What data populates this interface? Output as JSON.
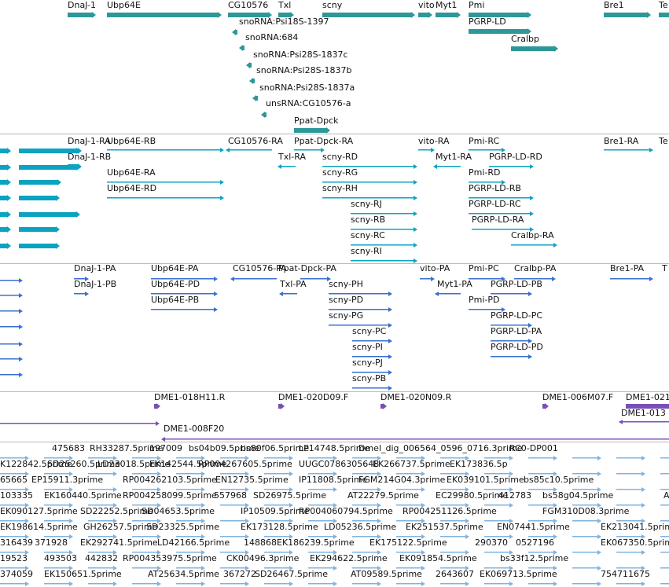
{
  "colors": {
    "gene": "#2e9898",
    "transcript": "#0ba3c0",
    "protein": "#3a6fd0",
    "clone": "#7850b5",
    "est": "#7fb3e0"
  },
  "tracks": {
    "genes": [
      {
        "label": "DnaJ-1"
      },
      {
        "label": "Ubp64E"
      },
      {
        "label": "CG10576"
      },
      {
        "label": "Txl"
      },
      {
        "label": "scny"
      },
      {
        "label": "vito"
      },
      {
        "label": "Myt1"
      },
      {
        "label": "Pmi"
      },
      {
        "label": "PGRP-LD"
      },
      {
        "label": "Cralbp"
      },
      {
        "label": "Bre1"
      },
      {
        "label": "Te"
      },
      {
        "label": "snoRNA:Psi18S-1397"
      },
      {
        "label": "snoRNA:684"
      },
      {
        "label": "snoRNA:Psi28S-1837c"
      },
      {
        "label": "snoRNA:Psi28S-1837b"
      },
      {
        "label": "snoRNA:Psi28S-1837a"
      },
      {
        "label": "unsRNA:CG10576-a"
      },
      {
        "label": "Ppat-Dpck"
      }
    ],
    "transcripts": [
      {
        "label": "DnaJ-1-RA"
      },
      {
        "label": "DnaJ-1-RB"
      },
      {
        "label": "Ubp64E-RB"
      },
      {
        "label": "Ubp64E-RA"
      },
      {
        "label": "Ubp64E-RD"
      },
      {
        "label": "CG10576-RA"
      },
      {
        "label": "Ppat-Dpck-RA"
      },
      {
        "label": "Txl-RA"
      },
      {
        "label": "scny-RD"
      },
      {
        "label": "scny-RG"
      },
      {
        "label": "scny-RH"
      },
      {
        "label": "scny-RJ"
      },
      {
        "label": "scny-RB"
      },
      {
        "label": "scny-RC"
      },
      {
        "label": "scny-RI"
      },
      {
        "label": "vito-RA"
      },
      {
        "label": "Myt1-RA"
      },
      {
        "label": "Pmi-RC"
      },
      {
        "label": "PGRP-LD-RD"
      },
      {
        "label": "Pmi-RD"
      },
      {
        "label": "PGRP-LD-RB"
      },
      {
        "label": "PGRP-LD-RC"
      },
      {
        "label": "PGRP-LD-RA"
      },
      {
        "label": "Cralbp-RA"
      },
      {
        "label": "Bre1-RA"
      },
      {
        "label": "Te"
      }
    ],
    "proteins": [
      {
        "label": "DnaJ-1-PA"
      },
      {
        "label": "DnaJ-1-PB"
      },
      {
        "label": "Ubp64E-PA"
      },
      {
        "label": "Ubp64E-PD"
      },
      {
        "label": "Ubp64E-PB"
      },
      {
        "label": "CG10576-PA"
      },
      {
        "label": "Ppat-Dpck-PA"
      },
      {
        "label": "Txl-PA"
      },
      {
        "label": "scny-PH"
      },
      {
        "label": "scny-PD"
      },
      {
        "label": "scny-PG"
      },
      {
        "label": "scny-PC"
      },
      {
        "label": "scny-PI"
      },
      {
        "label": "scny-PJ"
      },
      {
        "label": "scny-PB"
      },
      {
        "label": "vito-PA"
      },
      {
        "label": "Myt1-PA"
      },
      {
        "label": "Pmi-PC"
      },
      {
        "label": "Pmi-PD"
      },
      {
        "label": "Cralbp-PA"
      },
      {
        "label": "PGRP-LD-PB"
      },
      {
        "label": "PGRP-LD-PC"
      },
      {
        "label": "PGRP-LD-PA"
      },
      {
        "label": "PGRP-LD-PD"
      },
      {
        "label": "Bre1-PA"
      },
      {
        "label": "T"
      }
    ],
    "clones": [
      {
        "label": "DME1-018H11.R"
      },
      {
        "label": "DME1-020D09.F"
      },
      {
        "label": "DME1-020N09.R"
      },
      {
        "label": "DME1-006M07.F"
      },
      {
        "label": "DME1-021"
      },
      {
        "label": "DME1-013"
      },
      {
        "label": "DME1-008F20"
      }
    ],
    "ests": [
      {
        "label": "475683"
      },
      {
        "label": "RH33287.5prime"
      },
      {
        "label": "197009"
      },
      {
        "label": "bs04b09.5prime"
      },
      {
        "label": "bs80f06.5prime"
      },
      {
        "label": "LP14748.5prime"
      },
      {
        "label": "Dmel_dig_006564_0596_0716.3prime"
      },
      {
        "label": "RC0-DP001"
      },
      {
        "label": "K122842.5prime"
      },
      {
        "label": "SD25260.5prime"
      },
      {
        "label": "LD23018.5prime"
      },
      {
        "label": "EK142544.5prime"
      },
      {
        "label": "RP004267605.5prime"
      },
      {
        "label": "UUGC0786305648"
      },
      {
        "label": "EK266737.5prime"
      },
      {
        "label": "EK173836.5p"
      },
      {
        "label": "65665"
      },
      {
        "label": "EP15911.3prime"
      },
      {
        "label": "RP004262103.5prime"
      },
      {
        "label": "EN12735.5prime"
      },
      {
        "label": "IP11808.5prime"
      },
      {
        "label": "FGM214G04.3prime"
      },
      {
        "label": "EK039101.5prime"
      },
      {
        "label": "bs85c10.5prime"
      },
      {
        "label": "103335"
      },
      {
        "label": "EK160440.5prime"
      },
      {
        "label": "RP004258099.5prime"
      },
      {
        "label": "557968"
      },
      {
        "label": "SD26975.5prime"
      },
      {
        "label": "AT22279.5prime"
      },
      {
        "label": "EC29980.5prime"
      },
      {
        "label": "412783"
      },
      {
        "label": "bs58g04.5prime"
      },
      {
        "label": "A"
      },
      {
        "label": "EK090127.5prime"
      },
      {
        "label": "SD22252.5prime"
      },
      {
        "label": "SD04653.5prime"
      },
      {
        "label": "IP10509.5prime"
      },
      {
        "label": "RP004060794.5prime"
      },
      {
        "label": "RP004251126.5prime"
      },
      {
        "label": "FGM310D08.3prime"
      },
      {
        "label": "EK198614.5prime"
      },
      {
        "label": "GH26257.5prime"
      },
      {
        "label": "SD23325.5prime"
      },
      {
        "label": "EK173128.5prime"
      },
      {
        "label": "LD05236.5prime"
      },
      {
        "label": "EK251537.5prime"
      },
      {
        "label": "EN07441.5prime"
      },
      {
        "label": "EK213041.5prime"
      },
      {
        "label": "316439"
      },
      {
        "label": "371928"
      },
      {
        "label": "EK292741.5prime"
      },
      {
        "label": "LD42166.5prime"
      },
      {
        "label": "148868"
      },
      {
        "label": "EK186239.5prime"
      },
      {
        "label": "EK175122.5prime"
      },
      {
        "label": "290370"
      },
      {
        "label": "0527196"
      },
      {
        "label": "EK067350.5prime"
      },
      {
        "label": "19523"
      },
      {
        "label": "493503"
      },
      {
        "label": "442832"
      },
      {
        "label": "RP004353975.5prime"
      },
      {
        "label": "CK00496.3prime"
      },
      {
        "label": "EK294622.5prime"
      },
      {
        "label": "EK091854.5prime"
      },
      {
        "label": "bs33f12.5prime"
      },
      {
        "label": "374059"
      },
      {
        "label": "EK150651.5prime"
      },
      {
        "label": "AT25634.5prime"
      },
      {
        "label": "367272"
      },
      {
        "label": "SD26467.5prime"
      },
      {
        "label": "AT09589.5prime"
      },
      {
        "label": "2643607"
      },
      {
        "label": "EK069713.5prime"
      },
      {
        "label": "754711675"
      }
    ]
  }
}
